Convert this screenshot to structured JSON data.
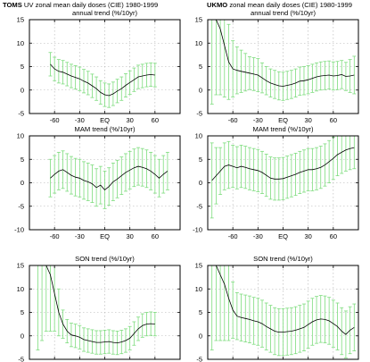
{
  "figure": {
    "colors": {
      "errorbar": "#7ddc7d",
      "line": "#000000",
      "grid": "#b0b0b0"
    }
  },
  "chart_data": [
    {
      "type": "line",
      "panel": "tl",
      "title_prefix": "TOMS",
      "title_rest": " UV zonal mean daily doses (CIE) 1980-1999",
      "subtitle": "annual trend (%/10yr)",
      "xlim": [
        -90,
        90
      ],
      "ylim": [
        -5,
        15
      ],
      "xticks": [
        -60,
        -30,
        0,
        30,
        60
      ],
      "xtick_labels": [
        "-60",
        "-30",
        "EQ",
        "30",
        "60"
      ],
      "yticks": [
        -5,
        0,
        5,
        10,
        15
      ],
      "ytick_labels": [
        "-5",
        "0",
        "5",
        "10",
        "15"
      ],
      "grid": true,
      "series": [
        {
          "x": [
            -65,
            -60,
            -55,
            -50,
            -45,
            -40,
            -35,
            -30,
            -25,
            -20,
            -15,
            -10,
            -5,
            0,
            5,
            10,
            15,
            20,
            25,
            30,
            35,
            40,
            45,
            50,
            55,
            60
          ],
          "y": [
            5.5,
            4.5,
            4,
            3.8,
            3.4,
            3,
            2.7,
            2.4,
            1.9,
            1.5,
            0.9,
            0.3,
            -0.5,
            -1.0,
            -1.2,
            -0.8,
            -0.2,
            0.3,
            1.0,
            1.6,
            2.2,
            2.8,
            3.0,
            3.2,
            3.3,
            3.2
          ],
          "err": [
            2.5,
            2.5,
            2.5,
            2.5,
            2.5,
            2.5,
            2.5,
            2.5,
            2.5,
            2.5,
            2.5,
            2.5,
            2.5,
            2.5,
            2.5,
            2.5,
            2.5,
            2.5,
            2.5,
            2.5,
            2.5,
            2.5,
            2.5,
            2.5,
            2.5,
            2.5
          ]
        }
      ]
    },
    {
      "type": "line",
      "panel": "tr",
      "title_prefix": "UKMO",
      "title_rest": " zonal mean daily doses (CIE) 1980-1999",
      "subtitle": "annual trend (%/10yr)",
      "xlim": [
        -90,
        90
      ],
      "ylim": [
        -5,
        15
      ],
      "xticks": [
        -60,
        -30,
        0,
        30,
        60
      ],
      "xtick_labels": [
        "-60",
        "-30",
        "EQ",
        "30",
        "60"
      ],
      "yticks": [
        -5,
        0,
        5,
        10,
        15
      ],
      "ytick_labels": [
        "-5",
        "0",
        "5",
        "10",
        "15"
      ],
      "grid": true,
      "series": [
        {
          "x": [
            -85,
            -80,
            -75,
            -70,
            -65,
            -60,
            -55,
            -50,
            -45,
            -40,
            -35,
            -30,
            -25,
            -20,
            -15,
            -10,
            -5,
            0,
            5,
            10,
            15,
            20,
            25,
            30,
            35,
            40,
            45,
            50,
            55,
            60,
            65,
            70,
            75,
            80,
            85
          ],
          "y": [
            15,
            15,
            13,
            9.5,
            6,
            4.5,
            4.2,
            4,
            3.8,
            3.6,
            3.4,
            3.2,
            2.6,
            2.0,
            1.5,
            1.2,
            0.9,
            0.8,
            1.0,
            1.2,
            1.5,
            1.9,
            2.0,
            2.2,
            2.5,
            2.8,
            3.0,
            3.1,
            3.2,
            3.0,
            3.1,
            3.3,
            2.9,
            3.0,
            3.2
          ],
          "err": [
            18,
            16,
            14,
            11,
            8,
            6,
            5,
            4.5,
            4,
            3.5,
            3.5,
            3.5,
            3.2,
            3,
            3,
            3,
            3,
            3,
            3,
            3,
            3,
            3,
            3,
            3,
            3,
            3,
            3,
            3,
            3,
            3,
            3,
            3,
            3,
            3.5,
            4
          ]
        }
      ]
    },
    {
      "type": "line",
      "panel": "ml",
      "subtitle": "MAM  trend (%/10yr)",
      "xlim": [
        -90,
        90
      ],
      "ylim": [
        -10,
        10
      ],
      "xticks": [
        -60,
        -30,
        0,
        30,
        60
      ],
      "xtick_labels": [
        "-60",
        "-30",
        "EQ",
        "30",
        "60"
      ],
      "yticks": [
        -10,
        -5,
        0,
        5,
        10
      ],
      "ytick_labels": [
        "-10",
        "-5",
        "0",
        "5",
        "10"
      ],
      "grid": true,
      "series": [
        {
          "x": [
            -65,
            -60,
            -55,
            -50,
            -45,
            -40,
            -35,
            -30,
            -25,
            -20,
            -15,
            -10,
            -5,
            0,
            5,
            10,
            15,
            20,
            25,
            30,
            35,
            40,
            45,
            50,
            55,
            60,
            65,
            70,
            75
          ],
          "y": [
            1.0,
            1.8,
            2.5,
            2.8,
            2.2,
            1.6,
            1.2,
            1.0,
            0.5,
            0.2,
            -0.2,
            -1.0,
            -0.5,
            -1.5,
            -0.8,
            0.2,
            0.8,
            1.5,
            2.2,
            2.7,
            3.2,
            3.5,
            3.3,
            3.0,
            2.5,
            1.8,
            1.0,
            1.8,
            2.5
          ],
          "err": [
            4,
            4,
            4,
            4,
            4,
            4,
            4,
            4,
            4,
            4,
            4,
            4,
            4,
            4,
            4,
            4,
            4,
            4,
            4,
            4,
            4,
            4,
            4,
            4,
            4,
            4,
            4,
            4,
            4
          ]
        }
      ]
    },
    {
      "type": "line",
      "panel": "mr",
      "subtitle": "MAM  trend (%/10yr)",
      "xlim": [
        -90,
        90
      ],
      "ylim": [
        -10,
        10
      ],
      "xticks": [
        -60,
        -30,
        0,
        30,
        60
      ],
      "xtick_labels": [
        "-60",
        "-30",
        "EQ",
        "30",
        "60"
      ],
      "yticks": [
        -10,
        -5,
        0,
        5,
        10
      ],
      "ytick_labels": [
        "-10",
        "-5",
        "0",
        "5",
        "10"
      ],
      "grid": true,
      "series": [
        {
          "x": [
            -85,
            -80,
            -75,
            -70,
            -65,
            -60,
            -55,
            -50,
            -45,
            -40,
            -35,
            -30,
            -25,
            -20,
            -15,
            -10,
            -5,
            0,
            5,
            10,
            15,
            20,
            25,
            30,
            35,
            40,
            45,
            50,
            55,
            60,
            65,
            70,
            75,
            80,
            85
          ],
          "y": [
            0.5,
            1.5,
            2.5,
            3.5,
            3.8,
            3.5,
            3.2,
            3.5,
            3.3,
            3.0,
            2.8,
            2.6,
            2.2,
            1.6,
            1.0,
            0.8,
            0.8,
            0.9,
            1.2,
            1.5,
            1.8,
            2.2,
            2.5,
            2.8,
            2.8,
            3.0,
            3.3,
            3.8,
            4.5,
            5.2,
            6.0,
            6.5,
            7.0,
            7.3,
            7.5
          ],
          "err": [
            8,
            6,
            5,
            5,
            5,
            4.5,
            4.5,
            4.5,
            4.5,
            4.5,
            4.5,
            4.5,
            4.5,
            4.5,
            4.5,
            4.5,
            4.5,
            4.5,
            4.5,
            4.5,
            4.5,
            4.5,
            4.5,
            4.5,
            4.5,
            4.5,
            4.5,
            4.5,
            4.5,
            4.5,
            4.5,
            4.5,
            4.5,
            4.5,
            4.5
          ]
        }
      ]
    },
    {
      "type": "line",
      "panel": "bl",
      "subtitle": "SON  trend (%/10yr)",
      "xlim": [
        -90,
        90
      ],
      "ylim": [
        -5,
        15
      ],
      "xticks": [
        -60,
        -30,
        0,
        30,
        60
      ],
      "xtick_labels": [
        "-60",
        "-30",
        "EQ",
        "30",
        "60"
      ],
      "yticks": [
        -5,
        0,
        5,
        10,
        15
      ],
      "ytick_labels": [
        "-5",
        "0",
        "5",
        "10",
        "15"
      ],
      "grid": true,
      "series": [
        {
          "x": [
            -80,
            -75,
            -70,
            -65,
            -60,
            -55,
            -50,
            -45,
            -40,
            -35,
            -30,
            -25,
            -20,
            -15,
            -10,
            -5,
            0,
            5,
            10,
            15,
            20,
            25,
            30,
            35,
            40,
            45,
            50,
            55,
            60
          ],
          "y": [
            15,
            15,
            15,
            13,
            9,
            5,
            2.5,
            1,
            0.2,
            0,
            -0.3,
            -0.8,
            -1,
            -1.2,
            -1.4,
            -1.4,
            -1.3,
            -1.2,
            -1.4,
            -1.5,
            -1.3,
            -1.0,
            -0.5,
            0.5,
            1.5,
            2.2,
            2.5,
            2.6,
            2.5
          ],
          "err": [
            18,
            16,
            14,
            12,
            8,
            5,
            3,
            2.5,
            2.5,
            2.5,
            2.5,
            2.5,
            2.5,
            2.5,
            2.5,
            2.5,
            2.5,
            2.5,
            2.5,
            2.5,
            2.5,
            2.5,
            2.5,
            2.5,
            2.5,
            2.5,
            2.5,
            2.5,
            2.5
          ]
        }
      ]
    },
    {
      "type": "line",
      "panel": "br",
      "subtitle": "SON  trend (%/10yr)",
      "xlim": [
        -90,
        90
      ],
      "ylim": [
        -5,
        15
      ],
      "xticks": [
        -60,
        -30,
        0,
        30,
        60
      ],
      "xtick_labels": [
        "-60",
        "-30",
        "EQ",
        "30",
        "60"
      ],
      "yticks": [
        -5,
        0,
        5,
        10,
        15
      ],
      "ytick_labels": [
        "-5",
        "0",
        "5",
        "10",
        "15"
      ],
      "grid": true,
      "series": [
        {
          "x": [
            -85,
            -80,
            -75,
            -70,
            -65,
            -60,
            -55,
            -50,
            -45,
            -40,
            -35,
            -30,
            -25,
            -20,
            -15,
            -10,
            -5,
            0,
            5,
            10,
            15,
            20,
            25,
            30,
            35,
            40,
            45,
            50,
            55,
            60,
            65,
            70,
            75,
            80,
            85
          ],
          "y": [
            15,
            15,
            13,
            11,
            8,
            5.5,
            4.2,
            3.9,
            3.7,
            3.5,
            3.2,
            3.0,
            2.6,
            2.0,
            1.5,
            1.0,
            0.8,
            0.8,
            0.9,
            1.0,
            1.2,
            1.5,
            1.8,
            2.4,
            3.0,
            3.4,
            3.6,
            3.5,
            3.2,
            2.6,
            2.0,
            1.0,
            0.3,
            1.2,
            1.8
          ],
          "err": [
            18,
            16,
            14,
            12,
            9,
            6,
            5,
            5,
            5,
            5,
            5,
            5,
            5,
            5,
            5,
            5,
            5,
            5,
            5,
            5,
            5,
            5,
            5,
            5,
            5,
            5,
            5,
            5,
            5,
            5,
            5,
            5,
            5,
            5,
            5
          ]
        }
      ]
    }
  ]
}
